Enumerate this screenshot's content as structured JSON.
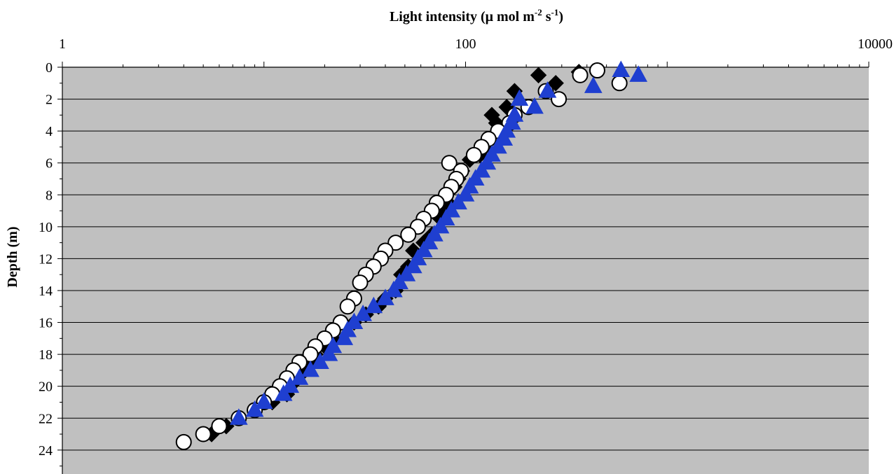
{
  "chart_data": {
    "type": "scatter",
    "xlabel": {
      "main": "Light intensity (",
      "mu": "μ",
      "mid": " mol m",
      "sup1": "-2",
      "s": " s",
      "sup2": "-1",
      "close": ")"
    },
    "ylabel": "Depth (m)",
    "x_scale": "log",
    "x_axis_position": "top",
    "y_inverted": true,
    "xlim": [
      1,
      10000
    ],
    "ylim": [
      0,
      25.5
    ],
    "x_ticks": [
      1,
      100,
      10000
    ],
    "x_tick_labels": [
      "1",
      "100",
      "10000"
    ],
    "y_ticks": [
      0,
      2,
      4,
      6,
      8,
      10,
      12,
      14,
      16,
      18,
      20,
      22,
      24
    ],
    "y_tick_labels": [
      "0",
      "2",
      "4",
      "6",
      "8",
      "10",
      "12",
      "14",
      "16",
      "18",
      "20",
      "22",
      "24"
    ],
    "grid": "horizontal",
    "plot_background": "#c0c0c0",
    "legend": "none",
    "series": [
      {
        "marker": "diamond",
        "color": "#000000",
        "points": [
          [
            365,
            0.3
          ],
          [
            230,
            0.5
          ],
          [
            280,
            1.0
          ],
          [
            175,
            1.5
          ],
          [
            160,
            2.5
          ],
          [
            135,
            3.0
          ],
          [
            142,
            3.5
          ],
          [
            130,
            4.5
          ],
          [
            125,
            5.0
          ],
          [
            118,
            5.5
          ],
          [
            105,
            5.8
          ],
          [
            96,
            6.5
          ],
          [
            92,
            7.0
          ],
          [
            88,
            7.5
          ],
          [
            82,
            8.5
          ],
          [
            80,
            9.0
          ],
          [
            75,
            9.5
          ],
          [
            68,
            10.5
          ],
          [
            62,
            11.0
          ],
          [
            55,
            11.5
          ],
          [
            52,
            12.5
          ],
          [
            48,
            13.0
          ],
          [
            45,
            14.0
          ],
          [
            40,
            14.5
          ],
          [
            37,
            15.0
          ],
          [
            32,
            15.5
          ],
          [
            28,
            16.0
          ],
          [
            22,
            16.5
          ],
          [
            22,
            17.0
          ],
          [
            20,
            17.5
          ],
          [
            18,
            18.0
          ],
          [
            17,
            18.5
          ],
          [
            16,
            19.0
          ],
          [
            14,
            19.8
          ],
          [
            13,
            20.5
          ],
          [
            11,
            21.0
          ],
          [
            9,
            21.5
          ],
          [
            6.5,
            22.5
          ],
          [
            5.5,
            23.0
          ]
        ]
      },
      {
        "marker": "circle",
        "color": "#000000",
        "fill": "#ffffff",
        "points": [
          [
            450,
            0.2
          ],
          [
            370,
            0.5
          ],
          [
            580,
            1.0
          ],
          [
            250,
            1.5
          ],
          [
            290,
            2.0
          ],
          [
            205,
            2.5
          ],
          [
            175,
            3.0
          ],
          [
            165,
            3.5
          ],
          [
            145,
            4.0
          ],
          [
            130,
            4.5
          ],
          [
            120,
            5.0
          ],
          [
            110,
            5.5
          ],
          [
            83,
            6.0
          ],
          [
            95,
            6.5
          ],
          [
            90,
            7.0
          ],
          [
            85,
            7.5
          ],
          [
            80,
            8.0
          ],
          [
            72,
            8.5
          ],
          [
            68,
            9.0
          ],
          [
            62,
            9.5
          ],
          [
            58,
            10.0
          ],
          [
            52,
            10.5
          ],
          [
            45,
            11.0
          ],
          [
            40,
            11.5
          ],
          [
            38,
            12.0
          ],
          [
            35,
            12.5
          ],
          [
            32,
            13.0
          ],
          [
            30,
            13.5
          ],
          [
            28,
            14.5
          ],
          [
            26,
            15.0
          ],
          [
            24,
            16.0
          ],
          [
            22,
            16.5
          ],
          [
            20,
            17.0
          ],
          [
            18,
            17.5
          ],
          [
            17,
            18.0
          ],
          [
            15,
            18.5
          ],
          [
            14,
            19.0
          ],
          [
            13,
            19.5
          ],
          [
            12,
            20.0
          ],
          [
            11,
            20.5
          ],
          [
            10,
            21.0
          ],
          [
            9,
            21.5
          ],
          [
            7.5,
            22.0
          ],
          [
            6,
            22.5
          ],
          [
            5,
            23.0
          ],
          [
            4,
            23.5
          ]
        ]
      },
      {
        "marker": "triangle",
        "color": "#1f3fd0",
        "points": [
          [
            590,
            0.2
          ],
          [
            720,
            0.5
          ],
          [
            430,
            1.2
          ],
          [
            255,
            1.5
          ],
          [
            185,
            2.0
          ],
          [
            220,
            2.5
          ],
          [
            175,
            3.0
          ],
          [
            170,
            3.5
          ],
          [
            160,
            4.0
          ],
          [
            155,
            4.5
          ],
          [
            145,
            5.0
          ],
          [
            135,
            5.5
          ],
          [
            128,
            6.0
          ],
          [
            120,
            6.5
          ],
          [
            112,
            7.0
          ],
          [
            105,
            7.5
          ],
          [
            100,
            8.0
          ],
          [
            92,
            8.5
          ],
          [
            85,
            9.0
          ],
          [
            80,
            9.5
          ],
          [
            75,
            10.0
          ],
          [
            70,
            10.5
          ],
          [
            66,
            11.0
          ],
          [
            62,
            11.5
          ],
          [
            58,
            12.0
          ],
          [
            55,
            12.5
          ],
          [
            51,
            13.0
          ],
          [
            47,
            13.5
          ],
          [
            44,
            14.0
          ],
          [
            40,
            14.5
          ],
          [
            35,
            15.0
          ],
          [
            31,
            15.5
          ],
          [
            28,
            16.0
          ],
          [
            26,
            16.5
          ],
          [
            25,
            17.0
          ],
          [
            22,
            17.5
          ],
          [
            21,
            18.0
          ],
          [
            19,
            18.5
          ],
          [
            17,
            19.0
          ],
          [
            15,
            19.5
          ],
          [
            13.5,
            20.0
          ],
          [
            12.5,
            20.5
          ],
          [
            10,
            21.0
          ],
          [
            9,
            21.5
          ],
          [
            7.5,
            22.0
          ]
        ]
      }
    ]
  }
}
